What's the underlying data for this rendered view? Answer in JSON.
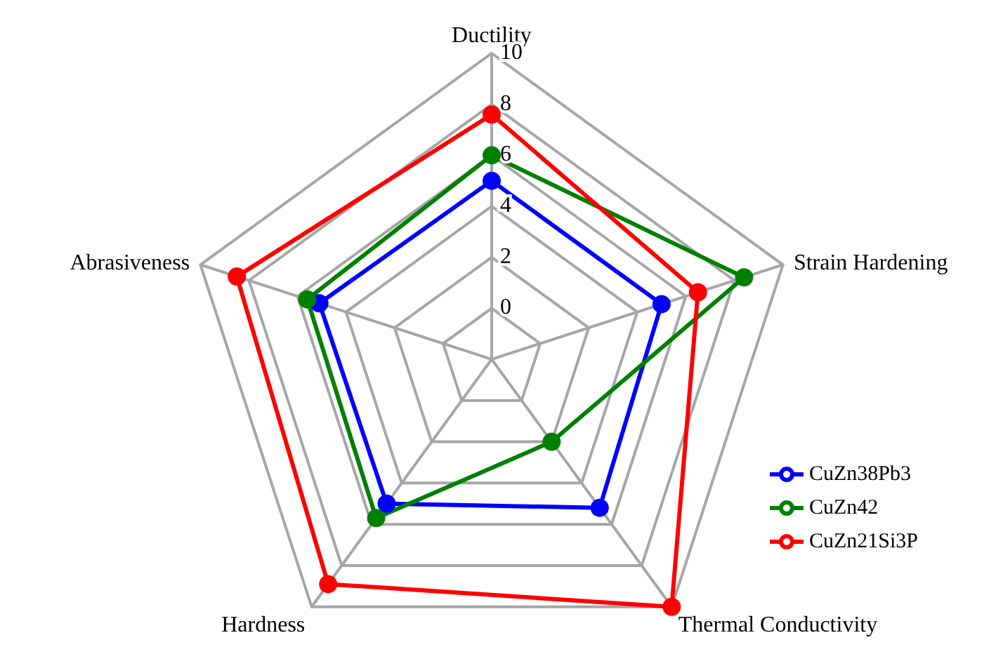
{
  "chart_data": {
    "type": "radar",
    "categories": [
      "Ductility",
      "Strain Hardening",
      "Thermal Conductivity",
      "Hardness",
      "Abrasiveness"
    ],
    "series": [
      {
        "name": "CuZn38Pb3",
        "color": "#0000ff",
        "values": [
          5,
          5,
          5.2,
          5,
          5.1
        ]
      },
      {
        "name": "CuZn42",
        "color": "#008000",
        "values": [
          6,
          8.4,
          2,
          5.7,
          5.6
        ]
      },
      {
        "name": "CuZn21Si3P",
        "color": "#ff0000",
        "values": [
          7.6,
          6.5,
          10,
          8.9,
          8.5
        ]
      }
    ],
    "ylim": [
      -2,
      10
    ],
    "yticks": [
      0,
      2,
      4,
      6,
      8,
      10
    ],
    "grid": true,
    "legend": "bottom right",
    "marker": "circle",
    "line_style": "solid"
  }
}
